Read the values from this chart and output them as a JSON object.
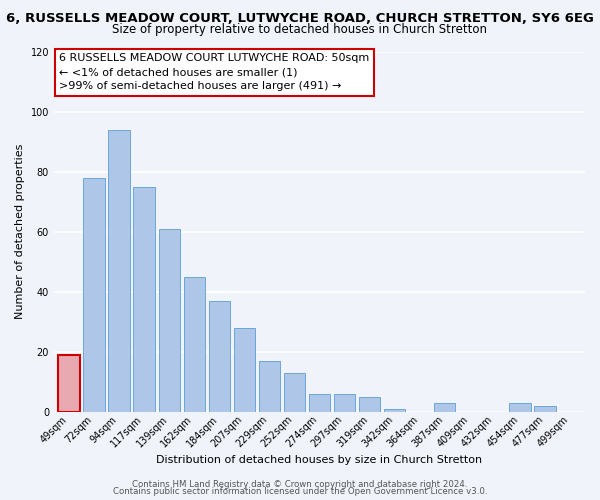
{
  "title": "6, RUSSELLS MEADOW COURT, LUTWYCHE ROAD, CHURCH STRETTON, SY6 6EG",
  "subtitle": "Size of property relative to detached houses in Church Stretton",
  "xlabel": "Distribution of detached houses by size in Church Stretton",
  "ylabel": "Number of detached properties",
  "bar_labels": [
    "49sqm",
    "72sqm",
    "94sqm",
    "117sqm",
    "139sqm",
    "162sqm",
    "184sqm",
    "207sqm",
    "229sqm",
    "252sqm",
    "274sqm",
    "297sqm",
    "319sqm",
    "342sqm",
    "364sqm",
    "387sqm",
    "409sqm",
    "432sqm",
    "454sqm",
    "477sqm",
    "499sqm"
  ],
  "bar_values": [
    19,
    78,
    94,
    75,
    61,
    45,
    37,
    28,
    17,
    13,
    6,
    6,
    5,
    1,
    0,
    3,
    0,
    0,
    3,
    2,
    0
  ],
  "highlight_index": 0,
  "bar_color": "#aec6e8",
  "highlight_color": "#e8aab0",
  "bar_edge_color": "#5a9fd4",
  "highlight_edge_color": "#cc0000",
  "ylim": [
    0,
    120
  ],
  "yticks": [
    0,
    20,
    40,
    60,
    80,
    100,
    120
  ],
  "annotation_line1": "6 RUSSELLS MEADOW COURT LUTWYCHE ROAD: 50sqm",
  "annotation_line2": "← <1% of detached houses are smaller (1)",
  "annotation_line3": ">99% of semi-detached houses are larger (491) →",
  "annotation_box_edge_color": "#cc0000",
  "footer_line1": "Contains HM Land Registry data © Crown copyright and database right 2024.",
  "footer_line2": "Contains public sector information licensed under the Open Government Licence v3.0.",
  "background_color": "#f0f4fa",
  "grid_color": "#ffffff",
  "title_fontsize": 9.5,
  "subtitle_fontsize": 8.5,
  "axis_label_fontsize": 8,
  "tick_fontsize": 7,
  "annotation_fontsize": 8,
  "footer_fontsize": 6.2
}
